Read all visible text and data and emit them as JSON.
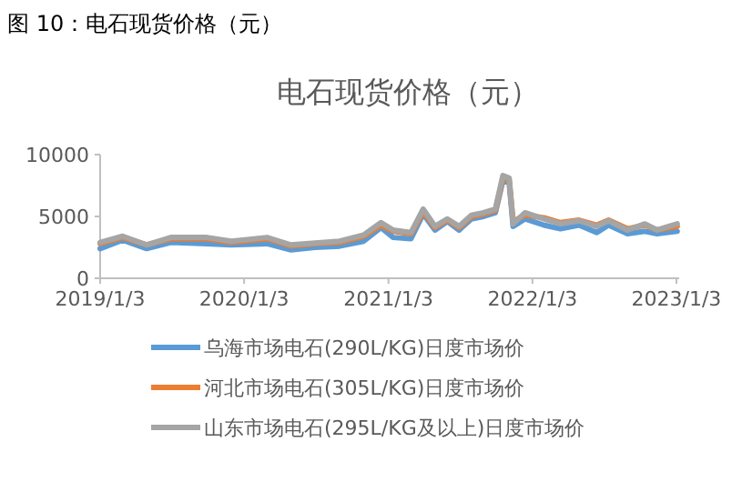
{
  "chart_data": {
    "type": "line",
    "title": "电石现货价格（元）",
    "annotations": [
      "图 10：电石现货价格（元）"
    ],
    "x": [
      "2019-01-03",
      "2019-03-01",
      "2019-05-01",
      "2019-07-01",
      "2019-10-01",
      "2019-12-01",
      "2020-03-01",
      "2020-05-01",
      "2020-07-01",
      "2020-09-01",
      "2020-11-01",
      "2020-12-15",
      "2021-01-15",
      "2021-03-01",
      "2021-04-01",
      "2021-05-01",
      "2021-06-01",
      "2021-07-01",
      "2021-08-01",
      "2021-09-01",
      "2021-10-01",
      "2021-10-20",
      "2021-11-05",
      "2021-11-15",
      "2021-12-15",
      "2022-02-01",
      "2022-03-15",
      "2022-05-01",
      "2022-06-15",
      "2022-07-15",
      "2022-09-01",
      "2022-10-15",
      "2022-11-15",
      "2023-01-05"
    ],
    "series": [
      {
        "name": "乌海市场电石(290L/KG)日度市场价",
        "color": "#5b9bd5",
        "values": [
          2400,
          3100,
          2400,
          2900,
          2800,
          2700,
          2800,
          2300,
          2500,
          2600,
          3000,
          4100,
          3300,
          3200,
          5200,
          3900,
          4600,
          3900,
          4800,
          5000,
          5300,
          7900,
          7700,
          4200,
          4800,
          4300,
          4000,
          4300,
          3700,
          4300,
          3600,
          3800,
          3600,
          3800
        ]
      },
      {
        "name": "河北市场电石(305L/KG)日度市场价",
        "color": "#ed7d31",
        "values": [
          2800,
          3300,
          2700,
          3200,
          3200,
          2900,
          3200,
          2600,
          2800,
          2900,
          3400,
          4300,
          3800,
          3600,
          5400,
          4100,
          4700,
          4100,
          5000,
          5200,
          5500,
          8100,
          7900,
          4600,
          5100,
          4900,
          4500,
          4700,
          4300,
          4700,
          4000,
          4300,
          3900,
          4200
        ]
      },
      {
        "name": "山东市场电石(295L/KG及以上)日度市场价",
        "color": "#a5a5a5",
        "values": [
          2900,
          3400,
          2700,
          3300,
          3300,
          3000,
          3300,
          2700,
          2850,
          3000,
          3500,
          4500,
          3900,
          3700,
          5600,
          4200,
          4800,
          4200,
          5100,
          5300,
          5600,
          8300,
          8100,
          4400,
          5300,
          4800,
          4400,
          4650,
          4200,
          4650,
          3900,
          4400,
          3900,
          4400
        ]
      }
    ],
    "xlim": [
      "2019-01-03",
      "2023-01-10"
    ],
    "xticks": [
      {
        "value": "2019-01-03",
        "label": "2019/1/3"
      },
      {
        "value": "2020-01-03",
        "label": "2020/1/3"
      },
      {
        "value": "2021-01-03",
        "label": "2021/1/3"
      },
      {
        "value": "2022-01-03",
        "label": "2022/1/3"
      },
      {
        "value": "2023-01-03",
        "label": "2023/1/3"
      }
    ],
    "ylim": [
      0,
      10000
    ],
    "yticks": [
      0,
      5000,
      10000
    ],
    "legend": "bottom",
    "grid": false,
    "marker": "none",
    "line_style": "solid"
  }
}
